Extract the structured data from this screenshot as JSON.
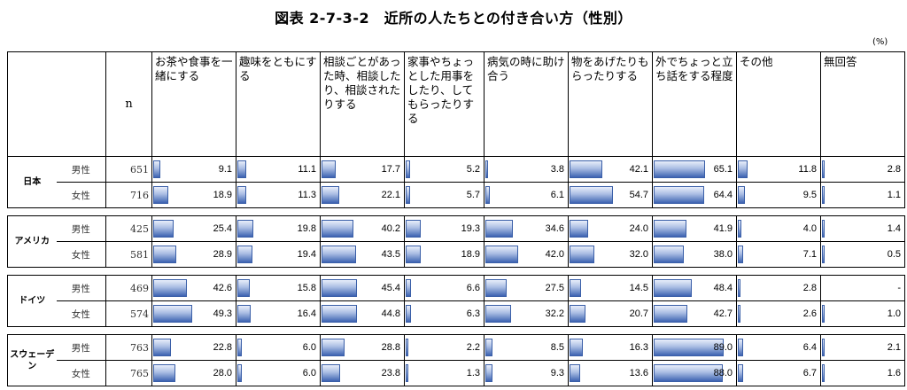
{
  "title": "図表 2-7-3-2　近所の人たちとの付き合い方（性別）",
  "unit": "(%)",
  "n_header": "n",
  "columns": [
    "お茶や食事を一緒にする",
    "趣味をともにする",
    "相談ごとがあった時、相談したり、相談されたりする",
    "家事やちょっとした用事をしたり、してもらったりする",
    "病気の時に助け合う",
    "物をあげたりもらったりする",
    "外でちょっと立ち話をする程度",
    "その他",
    "無回答"
  ],
  "groups": [
    {
      "country": "日本",
      "rows": [
        {
          "sex": "男性",
          "n": "651",
          "values": [
            "9.1",
            "11.1",
            "17.7",
            "5.2",
            "3.8",
            "42.1",
            "65.1",
            "11.8",
            "2.8"
          ]
        },
        {
          "sex": "女性",
          "n": "716",
          "values": [
            "18.9",
            "11.3",
            "22.1",
            "5.7",
            "6.1",
            "54.7",
            "64.4",
            "9.5",
            "1.1"
          ]
        }
      ]
    },
    {
      "country": "アメリカ",
      "rows": [
        {
          "sex": "男性",
          "n": "425",
          "values": [
            "25.4",
            "19.8",
            "40.2",
            "19.3",
            "34.6",
            "24.0",
            "41.9",
            "4.0",
            "1.4"
          ]
        },
        {
          "sex": "女性",
          "n": "581",
          "values": [
            "28.9",
            "19.4",
            "43.5",
            "18.9",
            "42.0",
            "32.0",
            "38.0",
            "7.1",
            "0.5"
          ]
        }
      ]
    },
    {
      "country": "ドイツ",
      "rows": [
        {
          "sex": "男性",
          "n": "469",
          "values": [
            "42.6",
            "15.8",
            "45.4",
            "6.6",
            "27.5",
            "14.5",
            "48.4",
            "2.8",
            "-"
          ]
        },
        {
          "sex": "女性",
          "n": "574",
          "values": [
            "49.3",
            "16.4",
            "44.8",
            "6.3",
            "32.2",
            "20.7",
            "42.7",
            "2.6",
            "1.0"
          ]
        }
      ]
    },
    {
      "country": "スウェーデン",
      "rows": [
        {
          "sex": "男性",
          "n": "763",
          "values": [
            "22.8",
            "6.0",
            "28.8",
            "2.2",
            "8.5",
            "16.3",
            "89.0",
            "6.4",
            "2.1"
          ]
        },
        {
          "sex": "女性",
          "n": "765",
          "values": [
            "28.0",
            "6.0",
            "23.8",
            "1.3",
            "9.3",
            "13.6",
            "88.0",
            "6.7",
            "1.6"
          ]
        }
      ]
    }
  ],
  "bar_color": "#3d63b2"
}
